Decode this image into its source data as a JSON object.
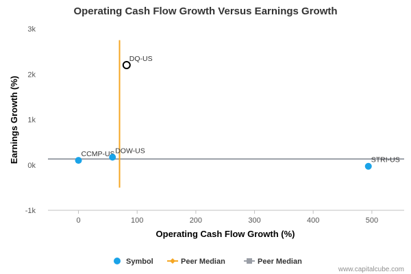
{
  "chart_data": {
    "type": "scatter",
    "title": "Operating Cash Flow Growth Versus Earnings Growth",
    "xlabel": "Operating Cash Flow Growth (%)",
    "ylabel": "Earnings Growth (%)",
    "xlim": [
      -52,
      555
    ],
    "ylim": [
      -1000,
      3000
    ],
    "x_ticks": [
      {
        "value": 0,
        "label": "0"
      },
      {
        "value": 100,
        "label": "100"
      },
      {
        "value": 200,
        "label": "200"
      },
      {
        "value": 300,
        "label": "300"
      },
      {
        "value": 400,
        "label": "400"
      },
      {
        "value": 500,
        "label": "500"
      }
    ],
    "y_ticks": [
      {
        "value": -1000,
        "label": "-1k"
      },
      {
        "value": 0,
        "label": "0k"
      },
      {
        "value": 1000,
        "label": "1k"
      },
      {
        "value": 2000,
        "label": "2k"
      },
      {
        "value": 3000,
        "label": "3k"
      }
    ],
    "grid": {
      "x": false,
      "y": false
    },
    "points": [
      {
        "label": "DQ-US",
        "x": 82,
        "y": 2200,
        "style": "open"
      },
      {
        "label": "CCMP-US",
        "x": 0,
        "y": 100,
        "style": "filled"
      },
      {
        "label": "DOW-US",
        "x": 58,
        "y": 170,
        "style": "filled"
      },
      {
        "label": "STRI-US",
        "x": 494,
        "y": -30,
        "style": "filled"
      }
    ],
    "peer_median_x": {
      "value": 70,
      "y_range": [
        -500,
        2750
      ]
    },
    "peer_median_y": {
      "value": 130,
      "x_range": [
        -52,
        555
      ]
    },
    "legend": {
      "position": "bottom",
      "items": [
        {
          "label": "Symbol",
          "marker": "circle",
          "color": "#1aa3e8"
        },
        {
          "label": "Peer Median",
          "marker": "diamond-line",
          "color": "#f5a623"
        },
        {
          "label": "Peer Median",
          "marker": "square-line",
          "color": "#9a9ea6"
        }
      ]
    },
    "colors": {
      "symbol": "#1aa3e8",
      "median_x": "#f5a623",
      "median_y": "#9a9ea6",
      "open_marker": "#000000"
    }
  },
  "credit": "www.capitalcube.com"
}
